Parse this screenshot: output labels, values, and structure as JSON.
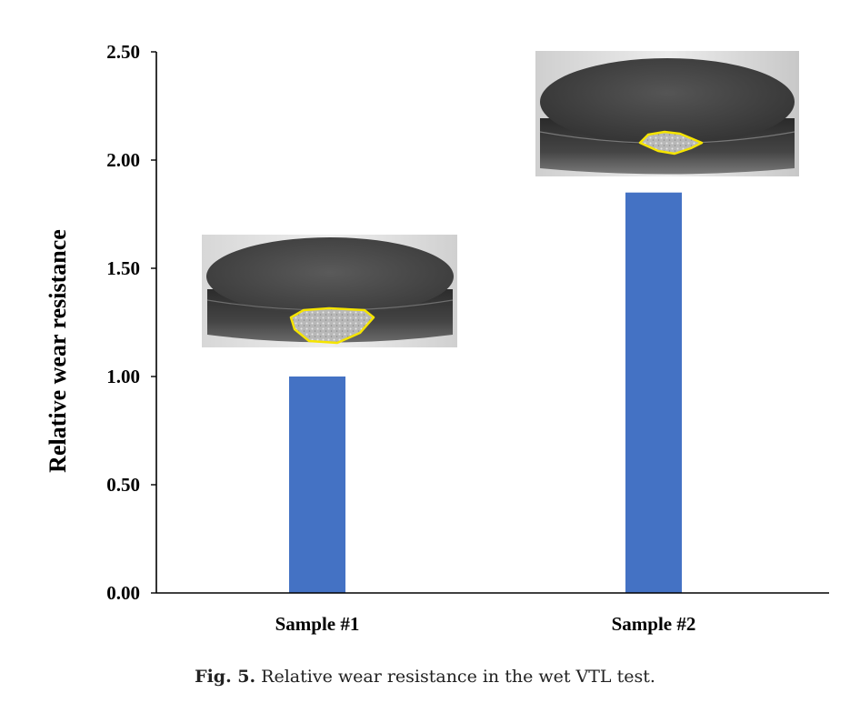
{
  "chart_data": {
    "type": "bar",
    "categories": [
      "Sample #1",
      "Sample #2"
    ],
    "values": [
      1.0,
      1.85
    ],
    "ylabel": "Relative wear resistance",
    "xlabel": "",
    "ylim": [
      0,
      2.5
    ],
    "yticks": [
      "0.00",
      "0.50",
      "1.00",
      "1.50",
      "2.00",
      "2.50"
    ],
    "bar_color": "#4472C4",
    "grid": false
  },
  "caption": {
    "label": "Fig. 5.",
    "text": " Relative wear resistance in the wet VTL test."
  },
  "photos": [
    {
      "depicts": "sample-1-worn-specimen-photo",
      "outline_color": "#F5E400"
    },
    {
      "depicts": "sample-2-worn-specimen-photo",
      "outline_color": "#F5E400"
    }
  ]
}
